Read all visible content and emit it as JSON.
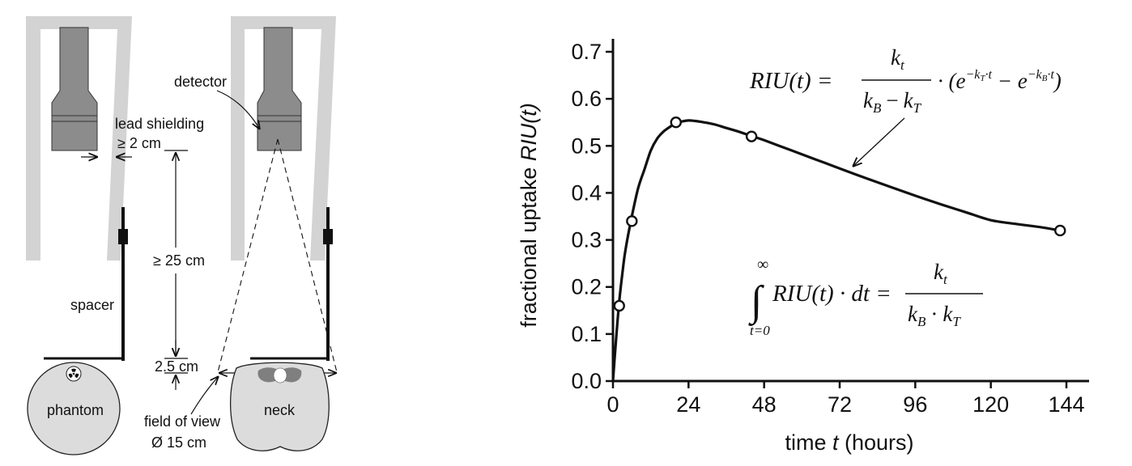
{
  "colors": {
    "shield": "#d3d3d3",
    "detector": "#8c8c8c",
    "body": "#dcdcdc",
    "thyroid": "#7f7f7f",
    "ink": "#111111"
  },
  "diagram": {
    "labels": {
      "detector": "detector",
      "lead_shielding": "lead shielding",
      "shield_thickness": "≥ 2 cm",
      "distance": "≥ 25 cm",
      "spacer": "spacer",
      "spacer_gap": "2.5 cm",
      "phantom": "phantom",
      "neck": "neck",
      "field_of_view": "field of view",
      "fov_diameter": "Ø 15 cm"
    },
    "icons": {
      "source": "radiation-trefoil-icon"
    }
  },
  "chart_data": {
    "type": "line",
    "title": "",
    "ylabel_prefix": "fractional uptake ",
    "ylabel_italic": "RIU(t)",
    "xlabel_prefix": "time ",
    "xlabel_italic": "t",
    "xlabel_suffix": " (hours)",
    "xlim": [
      0,
      144
    ],
    "ylim": [
      0,
      0.7
    ],
    "xticks": [
      0,
      24,
      48,
      72,
      96,
      120,
      144
    ],
    "yticks": [
      0.0,
      0.1,
      0.2,
      0.3,
      0.4,
      0.5,
      0.6,
      0.7
    ],
    "ytick_labels": [
      "0.0",
      "0.1",
      "0.2",
      "0.3",
      "0.4",
      "0.5",
      "0.6",
      "0.7"
    ],
    "grid": false,
    "measurements": {
      "x": [
        2,
        6,
        20,
        44,
        142
      ],
      "y": [
        0.16,
        0.34,
        0.55,
        0.52,
        0.32
      ]
    },
    "fit_curve": {
      "x": [
        0,
        1,
        2,
        3,
        4,
        6,
        8,
        10,
        12,
        14,
        16,
        18,
        20,
        22,
        24,
        26,
        28,
        32,
        36,
        40,
        44,
        48,
        56,
        64,
        72,
        80,
        88,
        96,
        104,
        112,
        120,
        128,
        136,
        142
      ],
      "y": [
        0.0,
        0.09,
        0.17,
        0.23,
        0.28,
        0.35,
        0.41,
        0.45,
        0.49,
        0.515,
        0.53,
        0.54,
        0.548,
        0.552,
        0.554,
        0.553,
        0.551,
        0.546,
        0.538,
        0.53,
        0.521,
        0.512,
        0.492,
        0.472,
        0.452,
        0.432,
        0.413,
        0.394,
        0.376,
        0.359,
        0.342,
        0.334,
        0.327,
        0.32
      ]
    },
    "annotations": {
      "model": {
        "lhs": "RIU(t) =",
        "numerator": "k",
        "numerator_sub": "t",
        "den_k1": "k",
        "den_k1_sub": "B",
        "den_minus": "−",
        "den_k2": "k",
        "den_k2_sub": "T",
        "mid": "· (e",
        "exp1": "−k",
        "exp1_sub": "T",
        "exp1_tail": "·t",
        "minus": " − e",
        "exp2": "−k",
        "exp2_sub": "B",
        "exp2_tail": "·t",
        "close": ")"
      },
      "integral": {
        "upper": "∞",
        "lower": "t=0",
        "sign": "∫",
        "body": "RIU(t) · dt =",
        "numerator": "k",
        "numerator_sub": "t",
        "den_k1": "k",
        "den_k1_sub": "B",
        "den_dot": "·",
        "den_k2": "k",
        "den_k2_sub": "T"
      }
    }
  }
}
